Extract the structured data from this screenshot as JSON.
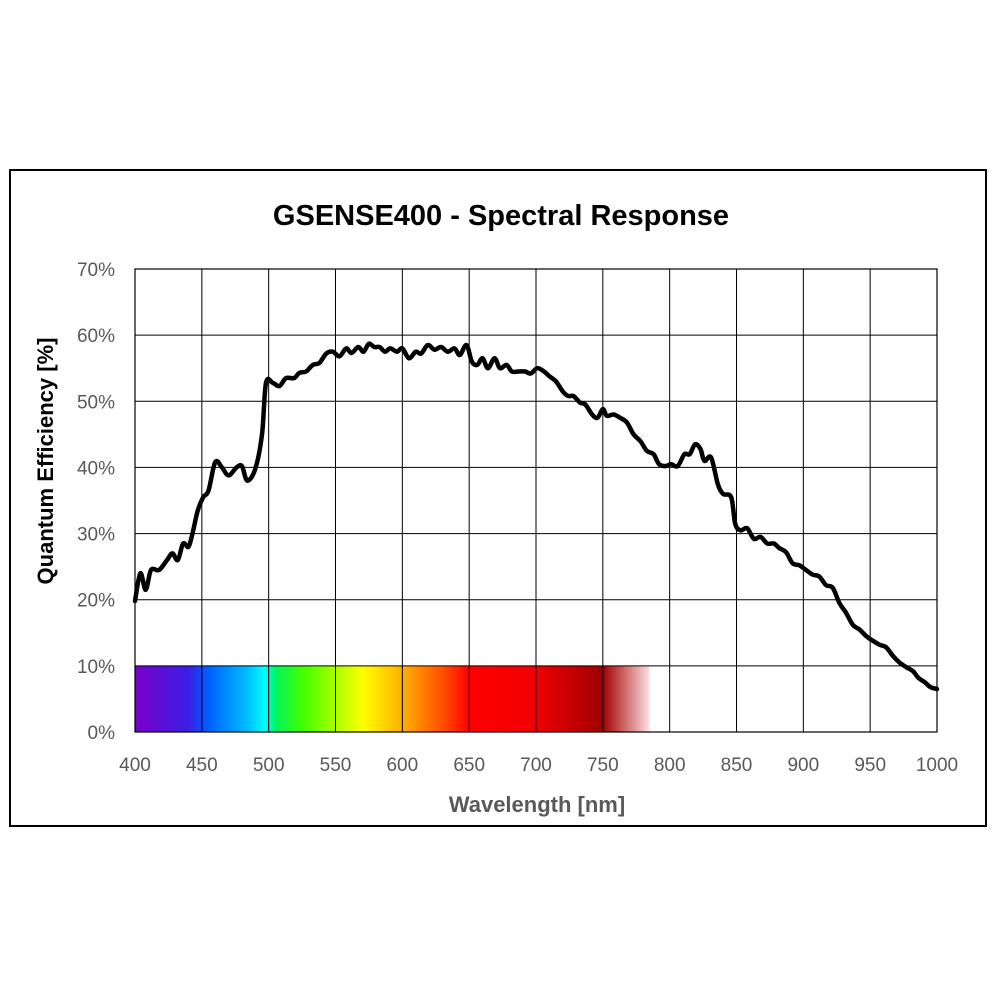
{
  "chart_data": {
    "type": "line",
    "title": "GSENSE400 - Spectral Response",
    "xlabel": "Wavelength [nm]",
    "ylabel": "Quantum Efficiency [%]",
    "xlim": [
      400,
      1000
    ],
    "ylim": [
      0,
      70
    ],
    "x_ticks": [
      "400",
      "450",
      "500",
      "550",
      "600",
      "650",
      "700",
      "750",
      "800",
      "850",
      "900",
      "950",
      "1000"
    ],
    "y_ticks": [
      "0%",
      "10%",
      "20%",
      "30%",
      "40%",
      "50%",
      "60%",
      "70%"
    ],
    "grid": true,
    "line_color": "#000000",
    "spectrum_band": {
      "x_start": 400,
      "x_end": 785,
      "y_top": 10,
      "stops": [
        {
          "wl": 400,
          "color": "#7a00c8"
        },
        {
          "wl": 440,
          "color": "#3a1ee6"
        },
        {
          "wl": 455,
          "color": "#0060ff"
        },
        {
          "wl": 485,
          "color": "#00c0ff"
        },
        {
          "wl": 497,
          "color": "#00ffff"
        },
        {
          "wl": 505,
          "color": "#00f560"
        },
        {
          "wl": 525,
          "color": "#40ff00"
        },
        {
          "wl": 570,
          "color": "#ffff00"
        },
        {
          "wl": 600,
          "color": "#ffb000"
        },
        {
          "wl": 630,
          "color": "#ff5000"
        },
        {
          "wl": 650,
          "color": "#ff0000"
        },
        {
          "wl": 700,
          "color": "#f00000"
        },
        {
          "wl": 750,
          "color": "#a00000"
        },
        {
          "wl": 785,
          "color": "#ffe0e0"
        }
      ]
    },
    "series": [
      {
        "points": [
          [
            400,
            19.8
          ],
          [
            404,
            24
          ],
          [
            408,
            21.5
          ],
          [
            412,
            24.5
          ],
          [
            418,
            24.5
          ],
          [
            424,
            26
          ],
          [
            428,
            27
          ],
          [
            432,
            26
          ],
          [
            436,
            28.5
          ],
          [
            440,
            28
          ],
          [
            443,
            30
          ],
          [
            447,
            33.5
          ],
          [
            451,
            35.5
          ],
          [
            455,
            36.5
          ],
          [
            460,
            40.8
          ],
          [
            465,
            40
          ],
          [
            470,
            38.8
          ],
          [
            476,
            40
          ],
          [
            480,
            40.2
          ],
          [
            484,
            38
          ],
          [
            490,
            39.8
          ],
          [
            495,
            45
          ],
          [
            498,
            52.8
          ],
          [
            503,
            52.8
          ],
          [
            508,
            52.3
          ],
          [
            513,
            53.5
          ],
          [
            519,
            53.5
          ],
          [
            523,
            54.3
          ],
          [
            528,
            54.5
          ],
          [
            533,
            55.5
          ],
          [
            538,
            55.8
          ],
          [
            543,
            57.2
          ],
          [
            548,
            57.5
          ],
          [
            553,
            56.8
          ],
          [
            558,
            58
          ],
          [
            562,
            57.3
          ],
          [
            567,
            58.2
          ],
          [
            571,
            57.5
          ],
          [
            575,
            58.7
          ],
          [
            579,
            58.2
          ],
          [
            583,
            58.2
          ],
          [
            587,
            57.5
          ],
          [
            591,
            58
          ],
          [
            596,
            57.5
          ],
          [
            600,
            58
          ],
          [
            605,
            56.5
          ],
          [
            610,
            57.5
          ],
          [
            614,
            57.2
          ],
          [
            619,
            58.5
          ],
          [
            624,
            57.8
          ],
          [
            629,
            58.2
          ],
          [
            634,
            57.5
          ],
          [
            639,
            58
          ],
          [
            643,
            57
          ],
          [
            648,
            58.5
          ],
          [
            652,
            56
          ],
          [
            656,
            55.5
          ],
          [
            660,
            56.5
          ],
          [
            664,
            55
          ],
          [
            669,
            56.5
          ],
          [
            673,
            55
          ],
          [
            678,
            55.5
          ],
          [
            682,
            54.5
          ],
          [
            687,
            54.5
          ],
          [
            692,
            54.5
          ],
          [
            696,
            54.2
          ],
          [
            701,
            55
          ],
          [
            706,
            54.5
          ],
          [
            710,
            53.8
          ],
          [
            715,
            53
          ],
          [
            720,
            51.5
          ],
          [
            724,
            50.8
          ],
          [
            728,
            50.8
          ],
          [
            733,
            49.8
          ],
          [
            737,
            49.5
          ],
          [
            742,
            48
          ],
          [
            746,
            47.5
          ],
          [
            750,
            48.8
          ],
          [
            753,
            47.8
          ],
          [
            758,
            48
          ],
          [
            763,
            47.5
          ],
          [
            768,
            46.8
          ],
          [
            773,
            45
          ],
          [
            778,
            44
          ],
          [
            783,
            42.5
          ],
          [
            788,
            42
          ],
          [
            792,
            40.5
          ],
          [
            797,
            40.2
          ],
          [
            801,
            40.5
          ],
          [
            806,
            40.2
          ],
          [
            811,
            42
          ],
          [
            815,
            42
          ],
          [
            819,
            43.5
          ],
          [
            823,
            42.8
          ],
          [
            826,
            41
          ],
          [
            831,
            41.5
          ],
          [
            836,
            37.5
          ],
          [
            840,
            36
          ],
          [
            846,
            35.5
          ],
          [
            849,
            31.5
          ],
          [
            853,
            30.5
          ],
          [
            858,
            30.8
          ],
          [
            863,
            29.2
          ],
          [
            868,
            29.5
          ],
          [
            873,
            28.5
          ],
          [
            878,
            28.5
          ],
          [
            882,
            27.8
          ],
          [
            887,
            27.2
          ],
          [
            892,
            25.5
          ],
          [
            897,
            25.2
          ],
          [
            902,
            24.5
          ],
          [
            907,
            23.8
          ],
          [
            912,
            23.5
          ],
          [
            917,
            22.2
          ],
          [
            922,
            21.8
          ],
          [
            927,
            19.5
          ],
          [
            932,
            18
          ],
          [
            937,
            16.2
          ],
          [
            942,
            15.5
          ],
          [
            947,
            14.5
          ],
          [
            952,
            13.8
          ],
          [
            957,
            13.2
          ],
          [
            962,
            12.8
          ],
          [
            967,
            11.5
          ],
          [
            972,
            10.5
          ],
          [
            977,
            9.8
          ],
          [
            982,
            9.2
          ],
          [
            986,
            8.2
          ],
          [
            991,
            7.5
          ],
          [
            995,
            6.8
          ],
          [
            1000,
            6.5
          ]
        ]
      }
    ]
  }
}
